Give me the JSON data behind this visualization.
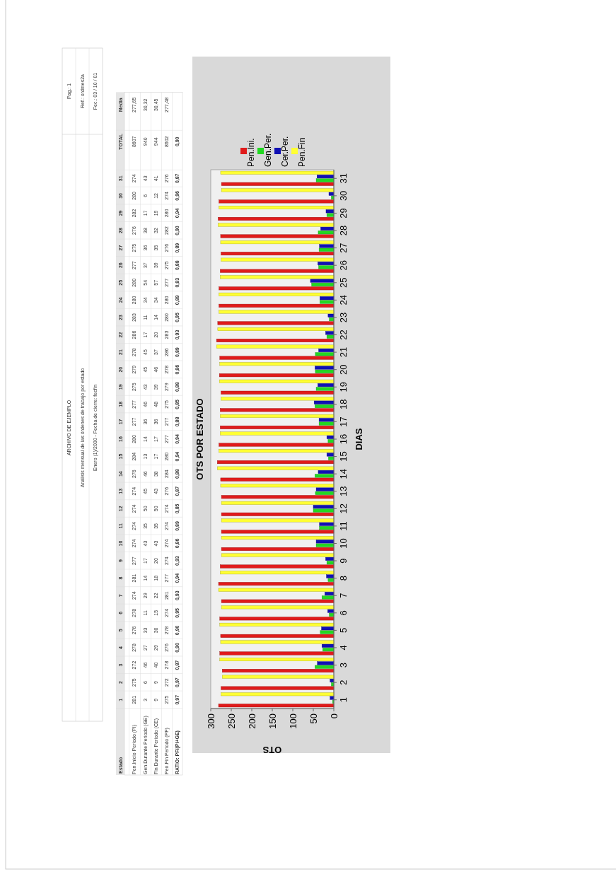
{
  "chart_data": {
    "type": "bar",
    "orientation": "horizontal",
    "title": "OTS POR ESTADO",
    "xlabel": "OTS",
    "ylabel": "DIAS",
    "categories": [
      "31",
      "30",
      "29",
      "28",
      "27",
      "26",
      "25",
      "24",
      "23",
      "22",
      "21",
      "20",
      "19",
      "18",
      "17",
      "16",
      "15",
      "14",
      "13",
      "12",
      "11",
      "10",
      "9",
      "8",
      "7",
      "6",
      "5",
      "4",
      "3",
      "2",
      "1"
    ],
    "series": [
      {
        "name": "Pen.Ini.",
        "color": "#e01b1b",
        "values": [
          274,
          280,
          282,
          276,
          275,
          277,
          280,
          280,
          283,
          286,
          278,
          279,
          275,
          277,
          277,
          280,
          284,
          276,
          274,
          274,
          274,
          274,
          277,
          281,
          274,
          278,
          276,
          278,
          272,
          275,
          281
        ]
      },
      {
        "name": "Gen.Per.",
        "color": "#22d822",
        "values": [
          43,
          6,
          17,
          38,
          36,
          37,
          54,
          34,
          11,
          17,
          45,
          45,
          43,
          46,
          36,
          14,
          13,
          46,
          45,
          50,
          35,
          43,
          17,
          14,
          29,
          11,
          33,
          27,
          46,
          6,
          3
        ]
      },
      {
        "name": "Cer.Per.",
        "color": "#1010b4",
        "values": [
          41,
          12,
          19,
          32,
          35,
          39,
          57,
          34,
          14,
          20,
          37,
          46,
          39,
          48,
          36,
          17,
          17,
          38,
          43,
          50,
          35,
          43,
          20,
          18,
          22,
          15,
          30,
          29,
          40,
          9,
          9
        ]
      },
      {
        "name": "Pen.Fin",
        "color": "#ffff33",
        "values": [
          276,
          274,
          280,
          282,
          276,
          275,
          277,
          280,
          280,
          283,
          286,
          278,
          279,
          275,
          277,
          277,
          280,
          284,
          276,
          274,
          274,
          274,
          274,
          277,
          281,
          274,
          278,
          276,
          278,
          272,
          275
        ]
      }
    ],
    "xlim": [
      300,
      0
    ],
    "xticks": [
      300,
      250,
      200,
      150,
      100,
      50,
      0
    ],
    "legend": "top left",
    "data_labels": true,
    "annotations": [
      "ARCHIVO DE EJEMPLO",
      "Análisis mensual de las órdenes de trabajo por estado",
      "Enero (1)/2000 - Fecha de cierre: fecfin",
      "Pag.: 1",
      "Ref.: ordmes2a",
      "Fec.: 03 / 10 / 01",
      "Estado",
      "Pen.Inicio Periodo (PI)",
      "Gen.Durante Periodo (GE)",
      "Fin Durante Periodo (CE)",
      "Pen.Fin Periodo (PF)",
      "RATIO: PF/(PI+GE)",
      "TOTAL",
      "Media",
      "8607",
      "940",
      "944",
      "8602",
      "0,90",
      "277,65",
      "30,32",
      "30,45",
      "277,48",
      "0,97",
      "0,97",
      "0,87",
      "0,90",
      "0,90",
      "0,95",
      "0,93",
      "0,94",
      "0,93",
      "0,86",
      "0,89",
      "0,85",
      "0,87",
      "0,88",
      "0,94",
      "0,94",
      "0,88",
      "0,85",
      "0,88",
      "0,86",
      "0,89",
      "0,93",
      "0,95",
      "0,89",
      "0,83",
      "0,88",
      "0,89",
      "0,90",
      "0,94",
      "0,96",
      "0,87"
    ]
  }
}
